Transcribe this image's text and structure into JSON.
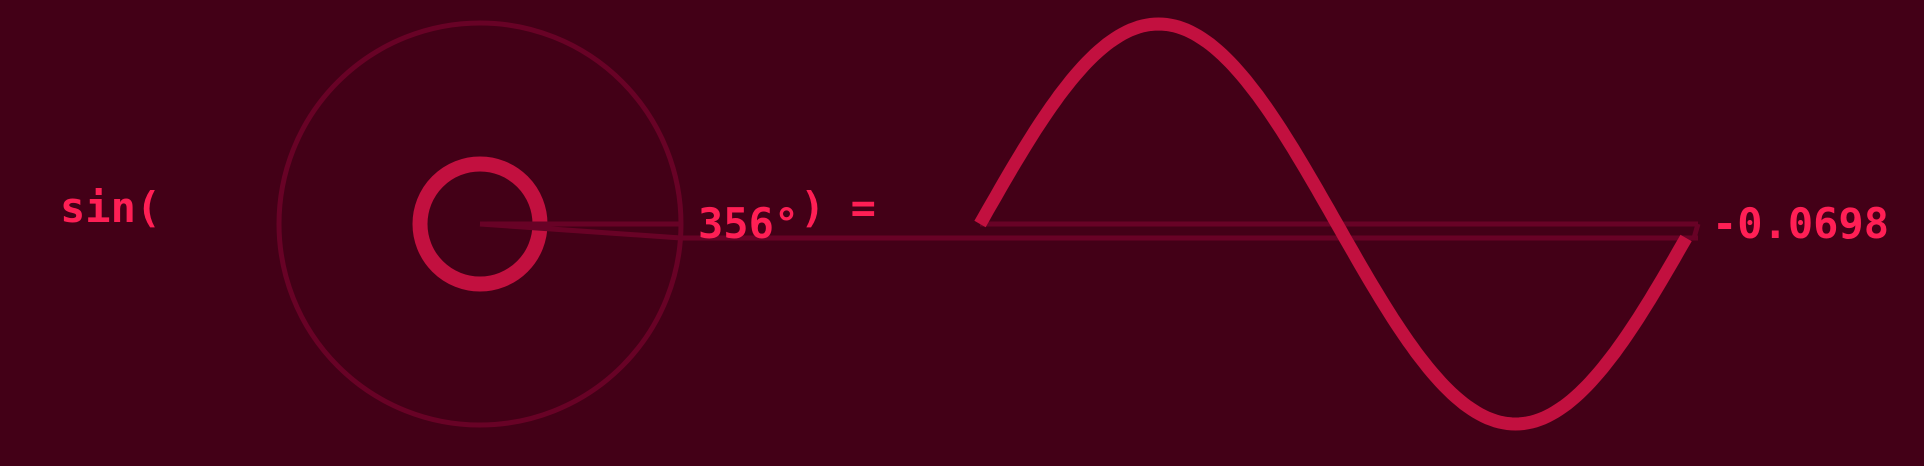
{
  "expression": {
    "prefix": "sin(",
    "angle": "356°",
    "suffix": ") =",
    "result": "-0.0698"
  },
  "chart_data": {
    "type": "line",
    "function": "sin",
    "angle_degrees": 356,
    "x_range_degrees": [
      0,
      360
    ],
    "y_range": [
      -1,
      1
    ],
    "result": -0.0698
  },
  "colors": {
    "background": "#430017",
    "accent": "#c2103f",
    "text": "#ff1f55",
    "faint": "#680226"
  }
}
